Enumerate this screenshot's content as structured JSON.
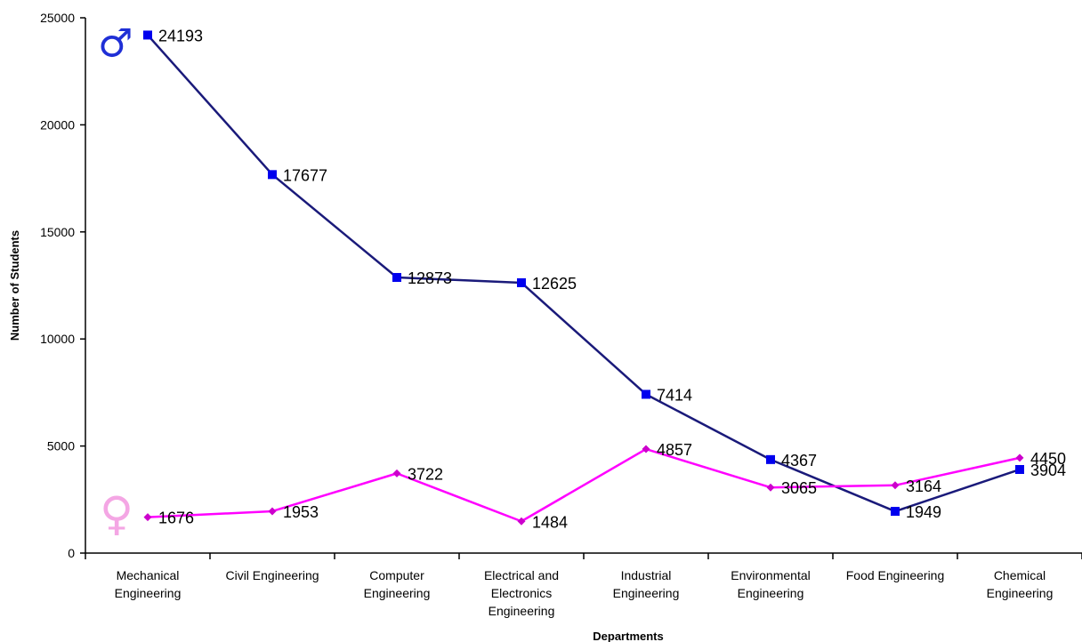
{
  "chart_data": {
    "type": "line",
    "title": "",
    "xlabel": "Departments",
    "ylabel": "Number of Students",
    "ylim": [
      0,
      25000
    ],
    "yticks": [
      0,
      5000,
      10000,
      15000,
      20000,
      25000
    ],
    "grid": false,
    "categories": [
      [
        "Mechanical",
        "Engineering"
      ],
      [
        "Civil Engineering"
      ],
      [
        "Computer",
        "Engineering"
      ],
      [
        "Electrical and",
        "Electronics",
        "Engineering"
      ],
      [
        "Industrial",
        "Engineering"
      ],
      [
        "Environmental",
        "Engineering"
      ],
      [
        "Food Engineering"
      ],
      [
        "Chemical",
        "Engineering"
      ]
    ],
    "series": [
      {
        "key": "male",
        "values": [
          24193,
          17677,
          12873,
          12625,
          7414,
          4367,
          1949,
          3904
        ],
        "line_color": "#1a1a7a",
        "marker_color": "#0000ee",
        "marker": "square",
        "symbol": "♂",
        "symbol_color": "#1f2fd6"
      },
      {
        "key": "female",
        "values": [
          1676,
          1953,
          3722,
          1484,
          4857,
          3065,
          3164,
          4450
        ],
        "line_color": "#ff00ff",
        "marker_color": "#cc00cc",
        "marker": "diamond",
        "symbol": "♀",
        "symbol_color": "#f4a6e4"
      }
    ]
  }
}
